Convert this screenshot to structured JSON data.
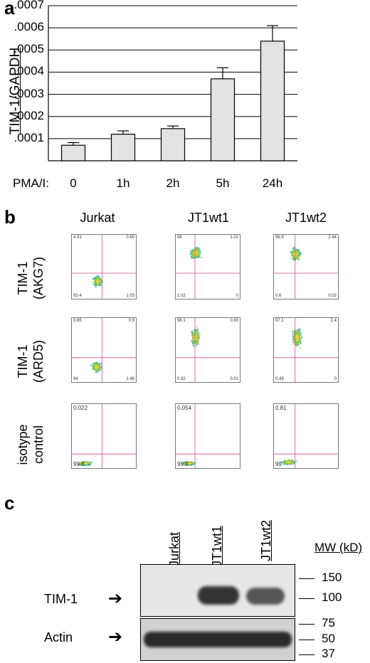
{
  "panel_a": {
    "letter": "a",
    "chart_data": {
      "type": "bar",
      "categories": [
        "0",
        "1h",
        "2h",
        "5h",
        "24h"
      ],
      "values": [
        7e-05,
        0.00012,
        0.000145,
        0.00037,
        0.00054
      ],
      "errors": [
        1.2e-05,
        1.5e-05,
        1.2e-05,
        5e-05,
        7e-05
      ],
      "ylabel": "TIM-1/GAPDH",
      "xaxis_prefix": "PMA/I:",
      "ylim": [
        0,
        0.0007
      ],
      "yticks": [
        ".0001",
        ".0002",
        ".0003",
        ".0004",
        ".0005",
        ".0006",
        ".0007"
      ],
      "grid": true,
      "bar_color": "#e3e3e3"
    }
  },
  "panel_b": {
    "letter": "b",
    "columns": [
      "Jurkat",
      "JT1wt1",
      "JT1wt2"
    ],
    "rows": [
      {
        "label_line1": "TIM-1",
        "label_line2": "(AKG7)",
        "quadrants": [
          [
            "4.91",
            "0.69",
            "93.4",
            "1.03"
          ],
          [
            "98",
            "1.01",
            "1.02",
            "0"
          ],
          [
            "96.9",
            "2.44",
            "0.6",
            "0.02"
          ]
        ]
      },
      {
        "label_line1": "TIM-1",
        "label_line2": "(ARD5)",
        "quadrants": [
          [
            "3.65",
            "0.9",
            "94",
            "1.46"
          ],
          [
            "98.1",
            "0.93",
            "0.92",
            "0.01"
          ],
          [
            "97.1",
            "2.4",
            "0.48",
            "0"
          ]
        ]
      },
      {
        "label_line1": "isotype",
        "label_line2": "control",
        "quadrants": [
          [
            "0.022",
            "",
            "99.8",
            ""
          ],
          [
            "0.054",
            "",
            "99.9",
            ""
          ],
          [
            "0.81",
            "",
            "99",
            ""
          ]
        ]
      }
    ]
  },
  "panel_c": {
    "letter": "c",
    "lanes": [
      "Jurkat",
      "JT1wt1",
      "JT1wt2"
    ],
    "mw_title": "MW (kD)",
    "markers": [
      "150",
      "100",
      "75",
      "50",
      "37"
    ],
    "band_labels": [
      "TIM-1",
      "Actin"
    ],
    "arrow_glyph": "➔"
  }
}
